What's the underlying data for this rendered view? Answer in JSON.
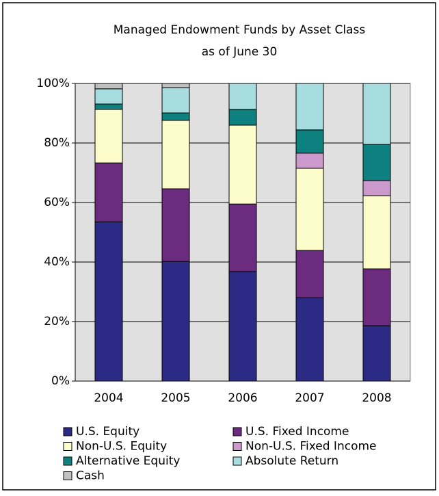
{
  "chart_data": {
    "type": "stacked_bar",
    "title": "Managed Endowment Funds by Asset Class",
    "subtitle": "as of June 30",
    "categories": [
      "2004",
      "2005",
      "2006",
      "2007",
      "2008"
    ],
    "series": [
      {
        "name": "U.S. Equity",
        "color": "#2b2b86",
        "values": [
          53.5,
          40.2,
          36.8,
          28,
          18.6
        ]
      },
      {
        "name": "U.S. Fixed Income",
        "color": "#6b2c80",
        "values": [
          19.8,
          24.4,
          22.7,
          15.9,
          19.1
        ]
      },
      {
        "name": "Non-U.S. Equity",
        "color": "#fdfdcc",
        "values": [
          18,
          23,
          26.5,
          27.6,
          24.6
        ]
      },
      {
        "name": "Non-U.S. Fixed Income",
        "color": "#cc99cc",
        "values": [
          0,
          0,
          0,
          5.1,
          5.1
        ]
      },
      {
        "name": "Alternative Equity",
        "color": "#0f8080",
        "values": [
          1.8,
          2.5,
          5.3,
          7.8,
          12.1
        ]
      },
      {
        "name": "Absolute Return",
        "color": "#a8dde0",
        "values": [
          5.1,
          8.5,
          8.7,
          15.6,
          20.5
        ]
      },
      {
        "name": "Cash",
        "color": "#c0c0c0",
        "values": [
          1.8,
          1.4,
          0,
          0,
          0
        ]
      }
    ],
    "ylim": [
      0,
      100
    ],
    "yticks": [
      {
        "value": 0,
        "label": "0%"
      },
      {
        "value": 20,
        "label": "20%"
      },
      {
        "value": 40,
        "label": "40%"
      },
      {
        "value": 60,
        "label": "60%"
      },
      {
        "value": 80,
        "label": "80%"
      },
      {
        "value": 100,
        "label": "100%"
      }
    ],
    "grid": true,
    "legend": "bottom"
  }
}
